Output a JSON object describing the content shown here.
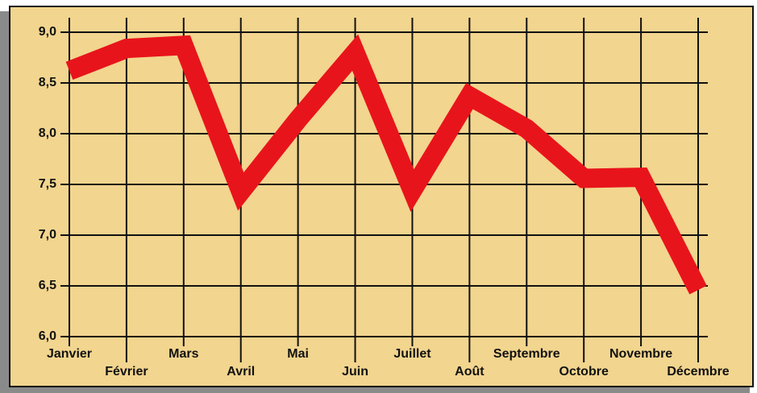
{
  "chart_data": {
    "type": "line",
    "categories": [
      "Janvier",
      "Février",
      "Mars",
      "Avril",
      "Mai",
      "Juin",
      "Juillet",
      "Août",
      "Septembre",
      "Octobre",
      "Novembre",
      "Décembre"
    ],
    "series": [
      {
        "color": "#e8141b",
        "values": [
          8.62,
          8.84,
          8.87,
          7.43,
          8.14,
          8.8,
          7.44,
          8.37,
          8.05,
          7.56,
          7.57,
          6.46
        ]
      }
    ],
    "ylim": [
      6,
      9
    ],
    "yticks": [
      {
        "value": 6,
        "label": "6,0"
      },
      {
        "value": 6.5,
        "label": "6,5"
      },
      {
        "value": 7,
        "label": "7,0"
      },
      {
        "value": 7.5,
        "label": "7,5"
      },
      {
        "value": 8,
        "label": "8,0"
      },
      {
        "value": 8.5,
        "label": "8,5"
      },
      {
        "value": 9,
        "label": "9,0"
      }
    ],
    "grid": true
  }
}
